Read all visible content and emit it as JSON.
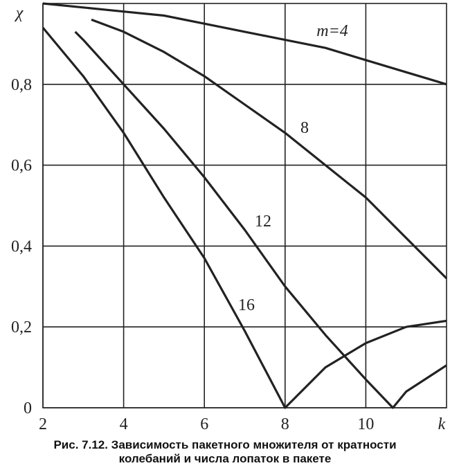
{
  "chart_data": {
    "type": "line",
    "y_label": "χ",
    "x_label": "k",
    "caption": [
      "Рис. 7.12. Зависимость пакетного множителя от кратности",
      "колебаний и числа лопаток в пакете"
    ],
    "xlim": [
      2,
      12
    ],
    "ylim": [
      0,
      1
    ],
    "xticks": [
      2,
      4,
      6,
      8,
      10
    ],
    "yticks": [
      0,
      {
        "value": 0.2,
        "label": "0,2"
      },
      {
        "value": 0.4,
        "label": "0,4"
      },
      {
        "value": 0.6,
        "label": "0,6"
      },
      {
        "value": 0.8,
        "label": "0,8"
      }
    ],
    "grid": true,
    "series": [
      {
        "name": "m=4",
        "color": "#222222",
        "x": [
          2,
          3,
          4,
          5,
          6,
          7,
          8,
          9,
          10,
          11,
          12
        ],
        "values": [
          1.0,
          0.99,
          0.98,
          0.97,
          0.95,
          0.93,
          0.91,
          0.89,
          0.86,
          0.83,
          0.8
        ]
      },
      {
        "name": "8",
        "color": "#222222",
        "x": [
          3.2,
          4,
          5,
          6,
          7,
          8,
          9,
          10,
          11,
          12
        ],
        "values": [
          0.96,
          0.93,
          0.88,
          0.82,
          0.75,
          0.68,
          0.6,
          0.52,
          0.42,
          0.32
        ]
      },
      {
        "name": "12",
        "color": "#222222",
        "x": [
          2.8,
          3,
          4,
          5,
          6,
          7,
          8,
          9,
          10,
          10.67,
          11,
          12
        ],
        "values": [
          0.93,
          0.91,
          0.8,
          0.69,
          0.57,
          0.44,
          0.3,
          0.18,
          0.07,
          0,
          0.04,
          0.105
        ]
      },
      {
        "name": "16",
        "color": "#222222",
        "x": [
          2,
          3,
          4,
          5,
          6,
          7,
          8,
          9,
          10,
          11,
          12
        ],
        "values": [
          0.94,
          0.82,
          0.68,
          0.52,
          0.37,
          0.19,
          0,
          0.1,
          0.16,
          0.2,
          0.215
        ]
      }
    ]
  }
}
